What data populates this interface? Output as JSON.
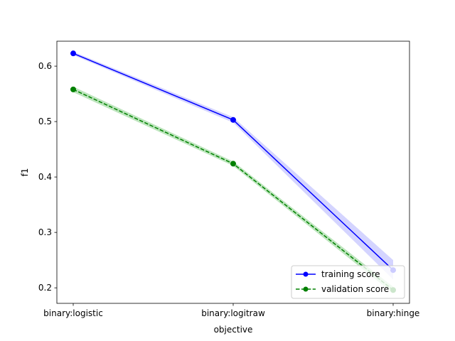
{
  "chart_data": {
    "type": "line",
    "title": "",
    "xlabel": "objective",
    "ylabel": "f1",
    "categories": [
      "binary:logistic",
      "binary:logitraw",
      "binary:hinge"
    ],
    "ylim": [
      0.172,
      0.645
    ],
    "yticks": [
      0.2,
      0.3,
      0.4,
      0.5,
      0.6
    ],
    "ytick_labels": [
      "0.2",
      "0.3",
      "0.4",
      "0.5",
      "0.6"
    ],
    "grid": false,
    "legend_position": "lower-right",
    "series": [
      {
        "name": "training score",
        "values": [
          0.623,
          0.503,
          0.232
        ],
        "band_lower": [
          0.62,
          0.498,
          0.215
        ],
        "band_upper": [
          0.626,
          0.508,
          0.25
        ],
        "color": "#0000ff",
        "band_color": "#ccccff",
        "linestyle": "solid",
        "marker": "circle"
      },
      {
        "name": "validation score",
        "values": [
          0.558,
          0.424,
          0.196
        ],
        "band_lower": [
          0.553,
          0.42,
          0.19
        ],
        "band_upper": [
          0.563,
          0.428,
          0.202
        ],
        "color": "#008000",
        "band_color": "#b2e0b2",
        "linestyle": "dashed",
        "marker": "circle"
      }
    ]
  }
}
